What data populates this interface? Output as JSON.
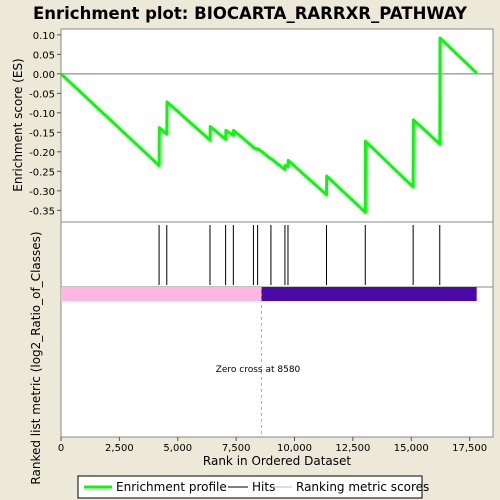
{
  "chart_data": {
    "type": "line",
    "title": "Enrichment plot: BIOCARTA_RARRXR_PATHWAY",
    "xlabel": "Rank in Ordered Dataset",
    "ylabel_top": "Enrichment score (ES)",
    "ylabel_bottom": "Ranked list metric (log2_Ratio_of_Classes)",
    "xlim": [
      0,
      18500
    ],
    "ylim": [
      -0.38,
      0.115
    ],
    "x_ticks": [
      0,
      2500,
      5000,
      7500,
      10000,
      12500,
      15000,
      17500
    ],
    "x_tick_labels": [
      "0",
      "2,500",
      "5,000",
      "7,500",
      "10,000",
      "12,500",
      "15,000",
      "17,500"
    ],
    "y_ticks": [
      0.1,
      0.05,
      0.0,
      -0.05,
      -0.1,
      -0.15,
      -0.2,
      -0.25,
      -0.3,
      -0.35
    ],
    "y_tick_labels": [
      "0.10",
      "0.05",
      "0.00",
      "-0.05",
      "-0.10",
      "-0.15",
      "-0.20",
      "-0.25",
      "-0.30",
      "-0.35"
    ],
    "series": [
      {
        "name": "Enrichment profile",
        "color": "#00ff00",
        "x": [
          0,
          4200,
          4210,
          4530,
          4540,
          6380,
          6390,
          7050,
          7060,
          7380,
          7390,
          8240,
          8250,
          8420,
          8430,
          8990,
          9000,
          9590,
          9600,
          9720,
          9730,
          11370,
          11380,
          13030,
          13040,
          15080,
          15090,
          16220,
          16230,
          17800
        ],
        "y": [
          0.0,
          -0.235,
          -0.138,
          -0.155,
          -0.072,
          -0.17,
          -0.135,
          -0.168,
          -0.145,
          -0.158,
          -0.145,
          -0.188,
          -0.19,
          -0.194,
          -0.192,
          -0.218,
          -0.218,
          -0.245,
          -0.235,
          -0.238,
          -0.222,
          -0.31,
          -0.262,
          -0.355,
          -0.173,
          -0.29,
          -0.118,
          -0.18,
          0.092,
          0.002
        ]
      }
    ],
    "hits": [
      4200,
      4530,
      6380,
      7050,
      7380,
      8240,
      8420,
      8990,
      9590,
      9720,
      11370,
      13030,
      15080,
      16220
    ],
    "hits_color": "#000000",
    "metric_bar": {
      "total": 17800,
      "zero_cross": 8580,
      "positive_color": "#ffb6e1",
      "negative_color": "#4a0aa8"
    },
    "zero_cross_label": "Zero cross at 8580",
    "legend": {
      "placement": "bottom",
      "items": [
        {
          "label": "Enrichment profile",
          "color": "#00ff00",
          "kind": "thick-line"
        },
        {
          "label": "Hits",
          "color": "#000000",
          "kind": "line"
        },
        {
          "label": "Ranking metric scores",
          "color": "#bbbbbb",
          "kind": "line"
        }
      ]
    }
  }
}
